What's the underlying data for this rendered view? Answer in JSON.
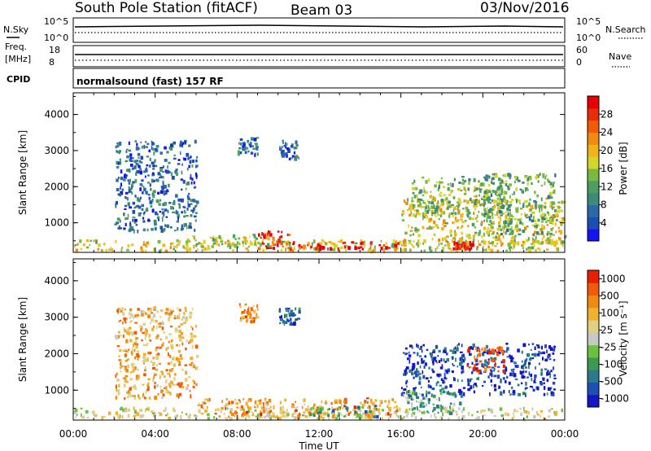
{
  "header": {
    "station": "South Pole Station (fitACF)",
    "beam": "Beam 03",
    "date": "03/Nov/2016"
  },
  "top_panels": {
    "nsky_label": "N.Sky",
    "nsky_ticks": [
      "10^5",
      "10^0"
    ],
    "nsearch_label": "N.Search",
    "nsearch_ticks": [
      "10^5",
      "10^0"
    ],
    "freq_label_1": "Freq.",
    "freq_label_2": "[MHz]",
    "freq_ticks": [
      "18",
      "8"
    ],
    "nave_label": "Nave",
    "nave_ticks": [
      "60",
      "0"
    ],
    "cpid_label": "CPID",
    "cpid_text": "normalsound (fast) 157 RF"
  },
  "chart_data": [
    {
      "type": "heatmap",
      "name": "power",
      "ylabel": "Slant Range [km]",
      "ylim": [
        180,
        4600
      ],
      "yticks": [
        "1000",
        "2000",
        "3000",
        "4000"
      ],
      "xlabel": "Time UT",
      "xlim": [
        0,
        24
      ],
      "xticks": [
        "00:00",
        "04:00",
        "08:00",
        "12:00",
        "16:00",
        "20:00",
        "00:00"
      ],
      "colorbar": {
        "label": "Power [dB]",
        "ticks": [
          "4",
          "8",
          "12",
          "16",
          "20",
          "24",
          "28"
        ],
        "colors": [
          "#1414f0",
          "#1e4eb4",
          "#2c6aa6",
          "#3d8a78",
          "#4c9e62",
          "#7ab840",
          "#d4d42a",
          "#f0b418",
          "#f08a10",
          "#f05a0a",
          "#e62d08",
          "#e60000"
        ]
      },
      "regions": [
        {
          "t0": 0.0,
          "t1": 24.0,
          "r0": 250,
          "r1": 550,
          "level": 0.55
        },
        {
          "t0": 9.0,
          "t1": 10.6,
          "r0": 300,
          "r1": 800,
          "level": 0.9
        },
        {
          "t0": 10.5,
          "t1": 16.0,
          "r0": 300,
          "r1": 500,
          "level": 0.95
        },
        {
          "t0": 5.5,
          "t1": 9.5,
          "r0": 350,
          "r1": 700,
          "level": 0.5
        },
        {
          "t0": 16.0,
          "t1": 24.0,
          "r0": 400,
          "r1": 1700,
          "level": 0.55
        },
        {
          "t0": 16.5,
          "t1": 21.0,
          "r0": 1200,
          "r1": 2300,
          "level": 0.45
        },
        {
          "t0": 20.0,
          "t1": 23.5,
          "r0": 700,
          "r1": 2400,
          "level": 0.4
        },
        {
          "t0": 18.5,
          "t1": 19.5,
          "r0": 300,
          "r1": 500,
          "level": 0.95
        },
        {
          "t0": 8.0,
          "t1": 9.0,
          "r0": 2900,
          "r1": 3400,
          "level": 0.2
        },
        {
          "t0": 10.0,
          "t1": 11.0,
          "r0": 2800,
          "r1": 3300,
          "level": 0.2
        },
        {
          "t0": 2.0,
          "t1": 6.0,
          "r0": 800,
          "r1": 3300,
          "level": 0.2
        }
      ]
    },
    {
      "type": "heatmap",
      "name": "velocity",
      "ylabel": "Slant Range [km]",
      "ylim": [
        180,
        4600
      ],
      "yticks": [
        "1000",
        "2000",
        "3000",
        "4000"
      ],
      "xlabel": "Time UT",
      "xlim": [
        0,
        24
      ],
      "xticks": [
        "00:00",
        "04:00",
        "08:00",
        "12:00",
        "16:00",
        "20:00",
        "00:00"
      ],
      "colorbar": {
        "label": "Velocity [m s⁻¹]",
        "ticks": [
          "1000",
          "500",
          "100",
          "25",
          "-25",
          "-100",
          "-500",
          "-1000"
        ],
        "colors": [
          "#1414c8",
          "#1e50b4",
          "#2a7a8c",
          "#3c9a50",
          "#6cc040",
          "#c8c8c8",
          "#e0d080",
          "#f0b030",
          "#f08a10",
          "#f05a0a",
          "#e62000"
        ]
      },
      "regions": [
        {
          "t0": 0.0,
          "t1": 24.0,
          "r0": 250,
          "r1": 550,
          "level": 0.55
        },
        {
          "t0": 6.0,
          "t1": 16.0,
          "r0": 300,
          "r1": 800,
          "level": 0.75
        },
        {
          "t0": 11.5,
          "t1": 15.0,
          "r0": 300,
          "r1": 600,
          "level": 0.3
        },
        {
          "t0": 16.0,
          "t1": 23.5,
          "r0": 900,
          "r1": 2300,
          "level": 0.1
        },
        {
          "t0": 19.0,
          "t1": 21.0,
          "r0": 1500,
          "r1": 2200,
          "level": 0.95
        },
        {
          "t0": 16.0,
          "t1": 19.0,
          "r0": 400,
          "r1": 1000,
          "level": 0.35
        },
        {
          "t0": 8.0,
          "t1": 9.0,
          "r0": 2900,
          "r1": 3400,
          "level": 0.75
        },
        {
          "t0": 10.0,
          "t1": 11.0,
          "r0": 2800,
          "r1": 3300,
          "level": 0.15
        },
        {
          "t0": 2.0,
          "t1": 6.0,
          "r0": 800,
          "r1": 3300,
          "level": 0.7
        }
      ]
    }
  ]
}
